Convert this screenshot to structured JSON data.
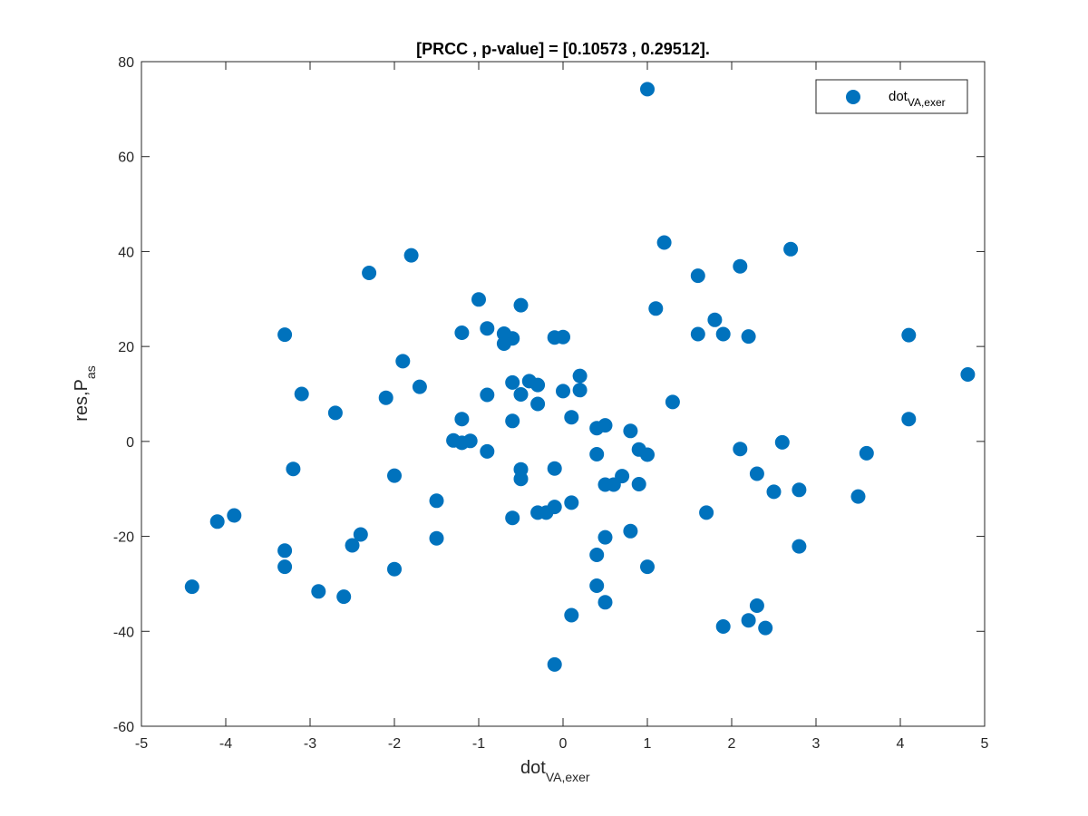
{
  "chart_data": {
    "type": "scatter",
    "title": "[PRCC , p-value] = [0.10573 , 0.29512].",
    "xlabel": {
      "base": "dot",
      "sub": "VA,exer"
    },
    "ylabel": {
      "base": "res,P",
      "sub": "as"
    },
    "xlim": [
      -5,
      5
    ],
    "ylim": [
      -60,
      80
    ],
    "xticks": [
      "-5",
      "-4",
      "-3",
      "-2",
      "-1",
      "0",
      "1",
      "2",
      "3",
      "4",
      "5"
    ],
    "yticks": [
      "-60",
      "-40",
      "-20",
      "0",
      "20",
      "40",
      "60",
      "80"
    ],
    "grid": false,
    "legend": {
      "position": "top-right",
      "entries": [
        {
          "base": "dot",
          "sub": "VA,exer"
        }
      ]
    },
    "series": [
      {
        "color": "#0072BD",
        "marker": "filled-circle",
        "points": [
          [
            1.0,
            74.2
          ],
          [
            1.2,
            41.9
          ],
          [
            2.7,
            40.5
          ],
          [
            1.6,
            34.9
          ],
          [
            2.1,
            36.9
          ],
          [
            1.1,
            28.0
          ],
          [
            1.8,
            25.6
          ],
          [
            1.6,
            22.6
          ],
          [
            1.9,
            22.6
          ],
          [
            2.2,
            22.1
          ],
          [
            4.1,
            22.4
          ],
          [
            4.8,
            14.1
          ],
          [
            4.1,
            4.7
          ],
          [
            3.6,
            -2.5
          ],
          [
            3.5,
            -11.6
          ],
          [
            2.6,
            -0.2
          ],
          [
            2.1,
            -1.6
          ],
          [
            2.3,
            -6.8
          ],
          [
            2.5,
            -10.6
          ],
          [
            2.8,
            -10.2
          ],
          [
            2.8,
            -22.1
          ],
          [
            1.7,
            -15.0
          ],
          [
            1.9,
            -39.0
          ],
          [
            2.2,
            -37.7
          ],
          [
            2.3,
            -34.6
          ],
          [
            2.4,
            -39.3
          ],
          [
            1.0,
            -26.4
          ],
          [
            1.3,
            8.3
          ],
          [
            0.8,
            2.2
          ],
          [
            0.9,
            -1.7
          ],
          [
            1.0,
            -2.8
          ],
          [
            0.9,
            -9.0
          ],
          [
            0.8,
            -18.9
          ],
          [
            0.7,
            -7.3
          ],
          [
            0.6,
            -9.1
          ],
          [
            0.5,
            -9.1
          ],
          [
            0.5,
            3.4
          ],
          [
            0.4,
            2.8
          ],
          [
            0.4,
            -2.7
          ],
          [
            0.5,
            -20.2
          ],
          [
            0.4,
            -23.9
          ],
          [
            0.4,
            -30.4
          ],
          [
            0.5,
            -33.9
          ],
          [
            0.1,
            -36.6
          ],
          [
            0.1,
            -12.9
          ],
          [
            0.1,
            5.1
          ],
          [
            0.2,
            10.8
          ],
          [
            0.2,
            13.8
          ],
          [
            0.0,
            10.6
          ],
          [
            0.0,
            22.0
          ],
          [
            -0.1,
            21.9
          ],
          [
            -0.1,
            -5.7
          ],
          [
            -0.1,
            -13.8
          ],
          [
            -0.2,
            -15.0
          ],
          [
            -0.3,
            -15.0
          ],
          [
            -0.1,
            -47.0
          ],
          [
            -0.3,
            7.9
          ],
          [
            -0.3,
            11.9
          ],
          [
            -0.4,
            12.7
          ],
          [
            -0.5,
            9.9
          ],
          [
            -0.5,
            28.7
          ],
          [
            -0.6,
            21.7
          ],
          [
            -0.7,
            22.7
          ],
          [
            -0.7,
            20.6
          ],
          [
            -0.6,
            12.4
          ],
          [
            -0.6,
            4.3
          ],
          [
            -0.5,
            -5.9
          ],
          [
            -0.5,
            -7.9
          ],
          [
            -0.6,
            -16.1
          ],
          [
            -0.9,
            23.8
          ],
          [
            -1.0,
            29.9
          ],
          [
            -0.9,
            9.8
          ],
          [
            -0.9,
            -2.1
          ],
          [
            -1.1,
            0.1
          ],
          [
            -1.2,
            4.7
          ],
          [
            -1.2,
            22.9
          ],
          [
            -1.3,
            0.2
          ],
          [
            -1.2,
            -0.3
          ],
          [
            -1.5,
            -12.5
          ],
          [
            -1.5,
            -20.4
          ],
          [
            -1.7,
            11.5
          ],
          [
            -1.8,
            39.2
          ],
          [
            -1.9,
            16.9
          ],
          [
            -2.1,
            9.2
          ],
          [
            -2.0,
            -7.2
          ],
          [
            -2.0,
            -26.9
          ],
          [
            -2.3,
            35.5
          ],
          [
            -2.4,
            -19.6
          ],
          [
            -2.5,
            -21.9
          ],
          [
            -2.7,
            6.0
          ],
          [
            -2.6,
            -32.7
          ],
          [
            -2.9,
            -31.6
          ],
          [
            -3.1,
            10.0
          ],
          [
            -3.2,
            -5.8
          ],
          [
            -3.3,
            22.5
          ],
          [
            -3.3,
            -23.0
          ],
          [
            -3.3,
            -26.4
          ],
          [
            -3.9,
            -15.6
          ],
          [
            -4.1,
            -16.9
          ],
          [
            -4.4,
            -30.6
          ]
        ]
      }
    ]
  }
}
